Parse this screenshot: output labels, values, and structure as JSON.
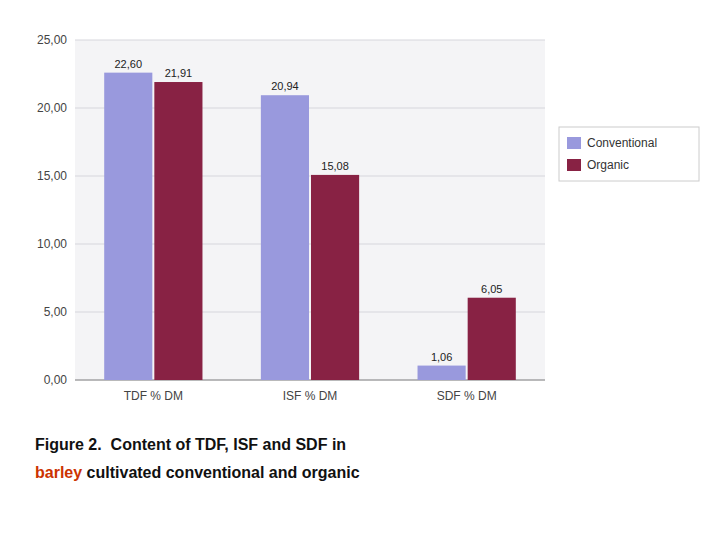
{
  "chart_data": {
    "type": "bar",
    "categories": [
      "TDF % DM",
      "ISF % DM",
      "SDF % DM"
    ],
    "series": [
      {
        "name": "Conventional",
        "color": "#9999DD",
        "values": [
          22.6,
          20.94,
          1.06
        ],
        "value_labels": [
          "22,60",
          "20,94",
          "1,06"
        ]
      },
      {
        "name": "Organic",
        "color": "#882244",
        "values": [
          21.91,
          15.08,
          6.05
        ],
        "value_labels": [
          "21,91",
          "15,08",
          "6,05"
        ]
      }
    ],
    "ylim": [
      0,
      25
    ],
    "yticks": [
      {
        "value": 0,
        "label": "0,00"
      },
      {
        "value": 5,
        "label": "5,00"
      },
      {
        "value": 10,
        "label": "10,00"
      },
      {
        "value": 15,
        "label": "15,00"
      },
      {
        "value": 20,
        "label": "20,00"
      },
      {
        "value": 25,
        "label": "25,00"
      }
    ],
    "grid": true,
    "legend": "right",
    "data_labels": true,
    "annotations": [
      {
        "text": "Figure 2.  Content of TDF, ISF and SDF in",
        "color": "#111111"
      },
      {
        "text": "barley",
        "color": "#CC3300"
      },
      {
        "text": " cultivated conventional and organic",
        "color": "#111111"
      }
    ]
  }
}
